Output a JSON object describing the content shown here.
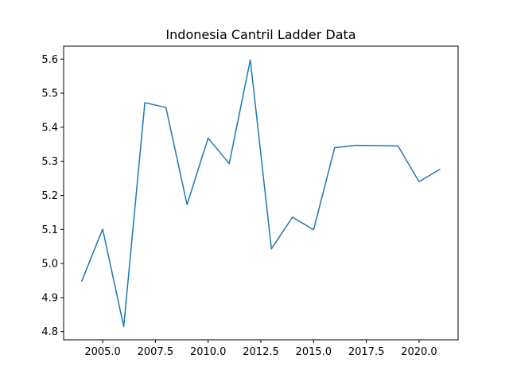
{
  "chart_data": {
    "type": "line",
    "title": "Indonesia Cantril Ladder Data",
    "xlabel": "",
    "ylabel": "",
    "xlim": [
      2003.15,
      2021.85
    ],
    "ylim": [
      4.776,
      5.638
    ],
    "x_ticks": [
      2005.0,
      2007.5,
      2010.0,
      2012.5,
      2015.0,
      2017.5,
      2020.0
    ],
    "x_tick_labels": [
      "2005.0",
      "2007.5",
      "2010.0",
      "2012.5",
      "2015.0",
      "2017.5",
      "2020.0"
    ],
    "y_ticks": [
      4.8,
      4.9,
      5.0,
      5.1,
      5.2,
      5.3,
      5.4,
      5.5,
      5.6
    ],
    "y_tick_labels": [
      "4.8",
      "4.9",
      "5.0",
      "5.1",
      "5.2",
      "5.3",
      "5.4",
      "5.5",
      "5.6"
    ],
    "grid": false,
    "series": [
      {
        "color": "#1f77b4",
        "x": [
          2004,
          2005,
          2006,
          2007,
          2008,
          2009,
          2010,
          2011,
          2012,
          2013,
          2014,
          2015,
          2016,
          2017,
          2019,
          2020,
          2021
        ],
        "y": [
          4.947,
          5.101,
          4.815,
          5.472,
          5.458,
          5.173,
          5.368,
          5.293,
          5.598,
          5.043,
          5.136,
          5.099,
          5.34,
          5.347,
          5.345,
          5.24,
          5.277
        ]
      }
    ]
  }
}
